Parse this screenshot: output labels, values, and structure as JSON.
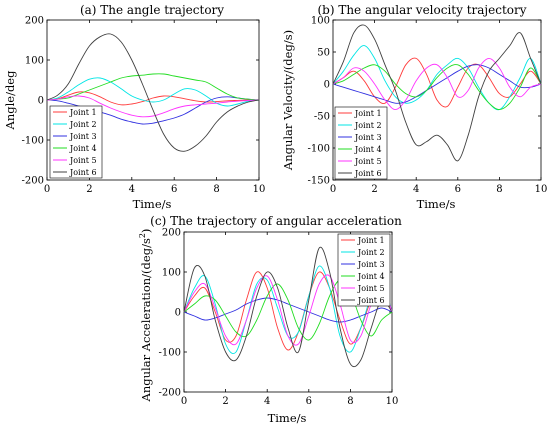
{
  "figure": {
    "colors": [
      "#ff3b3b",
      "#00e5e5",
      "#3030e0",
      "#22dd22",
      "#ff33ff",
      "#404040"
    ],
    "legend_labels": [
      "Joint 1",
      "Joint 2",
      "Joint 3",
      "Joint 4",
      "Joint 5",
      "Joint 6"
    ]
  },
  "chart_data": [
    {
      "type": "line",
      "title": "(a) The angle trajectory",
      "xlabel": "Time/s",
      "ylabel": "Angle/deg",
      "xlim": [
        0,
        10
      ],
      "ylim": [
        -200,
        200
      ],
      "xticks": [
        0,
        2,
        4,
        6,
        8,
        10
      ],
      "yticks": [
        -200,
        -100,
        0,
        100,
        200
      ],
      "legend": "lower-left",
      "series": [
        {
          "name": "Joint 1",
          "x": [
            0,
            0.5,
            1,
            1.5,
            2,
            2.5,
            3,
            3.5,
            4,
            4.5,
            5,
            5.5,
            6,
            6.5,
            7,
            7.5,
            8,
            8.5,
            9,
            9.5,
            10
          ],
          "values": [
            0,
            3,
            12,
            20,
            18,
            8,
            -5,
            -12,
            -10,
            -4,
            5,
            10,
            8,
            3,
            -2,
            -5,
            -4,
            -2,
            -1,
            0,
            0
          ]
        },
        {
          "name": "Joint 2",
          "x": [
            0,
            0.5,
            1,
            1.5,
            2,
            2.5,
            3,
            3.5,
            4,
            4.5,
            5,
            5.5,
            6,
            6.5,
            7,
            7.5,
            8,
            8.5,
            9,
            9.5,
            10
          ],
          "values": [
            0,
            5,
            20,
            38,
            52,
            55,
            45,
            28,
            10,
            0,
            -5,
            0,
            15,
            28,
            25,
            10,
            -8,
            -15,
            -10,
            -3,
            0
          ]
        },
        {
          "name": "Joint 3",
          "x": [
            0,
            0.5,
            1,
            1.5,
            2,
            2.5,
            3,
            3.5,
            4,
            4.5,
            5,
            5.5,
            6,
            6.5,
            7,
            7.5,
            8,
            8.5,
            9,
            9.5,
            10
          ],
          "values": [
            0,
            -2,
            -8,
            -15,
            -22,
            -30,
            -38,
            -48,
            -55,
            -60,
            -58,
            -52,
            -45,
            -35,
            -20,
            -5,
            5,
            8,
            5,
            2,
            0
          ]
        },
        {
          "name": "Joint 4",
          "x": [
            0,
            0.5,
            1,
            1.5,
            2,
            2.5,
            3,
            3.5,
            4,
            4.5,
            5,
            5.5,
            6,
            6.5,
            7,
            7.5,
            8,
            8.5,
            9,
            9.5,
            10
          ],
          "values": [
            0,
            2,
            5,
            15,
            25,
            35,
            45,
            55,
            60,
            62,
            65,
            65,
            60,
            55,
            50,
            45,
            30,
            15,
            5,
            2,
            0
          ]
        },
        {
          "name": "Joint 5",
          "x": [
            0,
            0.5,
            1,
            1.5,
            2,
            2.5,
            3,
            3.5,
            4,
            4.5,
            5,
            5.5,
            6,
            6.5,
            7,
            7.5,
            8,
            8.5,
            9,
            9.5,
            10
          ],
          "values": [
            0,
            2,
            8,
            10,
            5,
            -8,
            -20,
            -30,
            -38,
            -42,
            -40,
            -32,
            -22,
            -15,
            -12,
            -10,
            -8,
            -5,
            -3,
            -1,
            0
          ]
        },
        {
          "name": "Joint 6",
          "x": [
            0,
            0.5,
            1,
            1.5,
            2,
            2.5,
            3,
            3.5,
            4,
            4.5,
            5,
            5.5,
            6,
            6.5,
            7,
            7.5,
            8,
            8.5,
            9,
            9.5,
            10
          ],
          "values": [
            0,
            12,
            40,
            90,
            135,
            158,
            165,
            145,
            100,
            40,
            -25,
            -85,
            -120,
            -128,
            -115,
            -90,
            -55,
            -30,
            -15,
            -5,
            0
          ]
        }
      ]
    },
    {
      "type": "line",
      "title": "(b) The angular velocity trajectory",
      "xlabel": "Time/s",
      "ylabel": "Angular Velocity/(deg/s)",
      "xlim": [
        0,
        10
      ],
      "ylim": [
        -150,
        100
      ],
      "xticks": [
        0,
        2,
        4,
        6,
        8,
        10
      ],
      "yticks": [
        -150,
        -100,
        -50,
        0,
        50,
        100
      ],
      "legend": "lower-left",
      "series": [
        {
          "name": "Joint 1",
          "x": [
            0,
            0.5,
            1,
            1.5,
            2,
            2.5,
            3,
            3.5,
            4,
            4.5,
            5,
            5.5,
            6,
            6.5,
            7,
            7.5,
            8,
            8.5,
            9,
            9.5,
            10
          ],
          "values": [
            0,
            10,
            20,
            5,
            -20,
            -30,
            -5,
            30,
            40,
            15,
            -25,
            -35,
            -5,
            25,
            30,
            10,
            -15,
            -20,
            0,
            20,
            0
          ]
        },
        {
          "name": "Joint 2",
          "x": [
            0,
            0.5,
            1,
            1.5,
            2,
            2.5,
            3,
            3.5,
            4,
            4.5,
            5,
            5.5,
            6,
            6.5,
            7,
            7.5,
            8,
            8.5,
            9,
            9.5,
            10
          ],
          "values": [
            0,
            20,
            45,
            60,
            40,
            5,
            -20,
            -30,
            -25,
            -10,
            15,
            30,
            40,
            25,
            -5,
            -30,
            -40,
            -20,
            10,
            40,
            0
          ]
        },
        {
          "name": "Joint 3",
          "x": [
            0,
            0.5,
            1,
            1.5,
            2,
            2.5,
            3,
            3.5,
            4,
            4.5,
            5,
            5.5,
            6,
            6.5,
            7,
            7.5,
            8,
            8.5,
            9,
            9.5,
            10
          ],
          "values": [
            0,
            -5,
            -10,
            -15,
            -20,
            -25,
            -30,
            -28,
            -20,
            -10,
            0,
            10,
            20,
            28,
            30,
            25,
            15,
            5,
            -5,
            -5,
            0
          ]
        },
        {
          "name": "Joint 4",
          "x": [
            0,
            0.5,
            1,
            1.5,
            2,
            2.5,
            3,
            3.5,
            4,
            4.5,
            5,
            5.5,
            6,
            6.5,
            7,
            7.5,
            8,
            8.5,
            9,
            9.5,
            10
          ],
          "values": [
            0,
            5,
            15,
            25,
            30,
            20,
            0,
            -15,
            -20,
            -10,
            10,
            25,
            30,
            15,
            -10,
            -30,
            -40,
            -30,
            -5,
            25,
            0
          ]
        },
        {
          "name": "Joint 5",
          "x": [
            0,
            0.5,
            1,
            1.5,
            2,
            2.5,
            3,
            3.5,
            4,
            4.5,
            5,
            5.5,
            6,
            6.5,
            7,
            7.5,
            8,
            8.5,
            9,
            9.5,
            10
          ],
          "values": [
            0,
            10,
            25,
            20,
            0,
            -25,
            -40,
            -25,
            5,
            25,
            30,
            10,
            -20,
            -10,
            25,
            40,
            25,
            -5,
            -20,
            -5,
            0
          ]
        },
        {
          "name": "Joint 6",
          "x": [
            0,
            0.5,
            1,
            1.5,
            2,
            2.5,
            3,
            3.5,
            4,
            4.5,
            5,
            5.5,
            6,
            6.5,
            7,
            7.5,
            8,
            8.5,
            9,
            9.5,
            10
          ],
          "values": [
            0,
            35,
            80,
            92,
            70,
            30,
            -10,
            -60,
            -95,
            -90,
            -80,
            -95,
            -120,
            -80,
            -20,
            20,
            40,
            60,
            80,
            40,
            0
          ]
        }
      ]
    },
    {
      "type": "line",
      "title": "(c) The trajectory of angular acceleration",
      "xlabel": "Time/s",
      "ylabel": "Angular Acceleration/(deg/s",
      "ylabel_sup": "2",
      "ylabel_end": ")",
      "xlim": [
        0,
        10
      ],
      "ylim": [
        -200,
        200
      ],
      "xticks": [
        0,
        2,
        4,
        6,
        8,
        10
      ],
      "yticks": [
        -200,
        -100,
        0,
        100,
        200
      ],
      "legend": "top-right",
      "series": [
        {
          "name": "Joint 1",
          "x": [
            0,
            0.5,
            1,
            1.5,
            2,
            2.5,
            3,
            3.5,
            4,
            4.5,
            5,
            5.5,
            6,
            6.5,
            7,
            7.5,
            8,
            8.5,
            9,
            9.5,
            10
          ],
          "values": [
            0,
            40,
            60,
            0,
            -70,
            -60,
            30,
            100,
            60,
            -40,
            -95,
            -50,
            40,
            100,
            60,
            -20,
            -80,
            -40,
            30,
            60,
            0
          ]
        },
        {
          "name": "Joint 2",
          "x": [
            0,
            0.5,
            1,
            1.5,
            2,
            2.5,
            3,
            3.5,
            4,
            4.5,
            5,
            5.5,
            6,
            6.5,
            7,
            7.5,
            8,
            8.5,
            9,
            9.5,
            10
          ],
          "values": [
            0,
            60,
            90,
            20,
            -80,
            -100,
            -20,
            70,
            80,
            10,
            -60,
            -50,
            40,
            115,
            60,
            -60,
            -100,
            -40,
            40,
            80,
            0
          ]
        },
        {
          "name": "Joint 3",
          "x": [
            0,
            0.5,
            1,
            1.5,
            2,
            2.5,
            3,
            3.5,
            4,
            4.5,
            5,
            5.5,
            6,
            6.5,
            7,
            7.5,
            8,
            8.5,
            9,
            9.5,
            10
          ],
          "values": [
            0,
            -10,
            -20,
            -15,
            -5,
            5,
            20,
            30,
            35,
            30,
            20,
            10,
            0,
            -10,
            -20,
            -25,
            -20,
            -10,
            0,
            10,
            0
          ]
        },
        {
          "name": "Joint 4",
          "x": [
            0,
            0.5,
            1,
            1.5,
            2,
            2.5,
            3,
            3.5,
            4,
            4.5,
            5,
            5.5,
            6,
            6.5,
            7,
            7.5,
            8,
            8.5,
            9,
            9.5,
            10
          ],
          "values": [
            0,
            20,
            40,
            30,
            -10,
            -50,
            -60,
            -20,
            40,
            70,
            30,
            -40,
            -70,
            -30,
            40,
            80,
            50,
            -20,
            -60,
            -20,
            0
          ]
        },
        {
          "name": "Joint 5",
          "x": [
            0,
            0.5,
            1,
            1.5,
            2,
            2.5,
            3,
            3.5,
            4,
            4.5,
            5,
            5.5,
            6,
            6.5,
            7,
            7.5,
            8,
            8.5,
            9,
            9.5,
            10
          ],
          "values": [
            0,
            50,
            70,
            10,
            -60,
            -80,
            -20,
            60,
            90,
            30,
            -60,
            -80,
            -10,
            70,
            90,
            20,
            -70,
            -60,
            20,
            70,
            0
          ]
        },
        {
          "name": "Joint 6",
          "x": [
            0,
            0.5,
            1,
            1.5,
            2,
            2.5,
            3,
            3.5,
            4,
            4.5,
            5,
            5.5,
            6,
            6.5,
            7,
            7.5,
            8,
            8.5,
            9,
            9.5,
            10
          ],
          "values": [
            0,
            110,
            90,
            -20,
            -100,
            -120,
            -60,
            40,
            100,
            60,
            -40,
            -100,
            30,
            160,
            100,
            -40,
            -130,
            -120,
            -40,
            30,
            0
          ]
        }
      ]
    }
  ]
}
